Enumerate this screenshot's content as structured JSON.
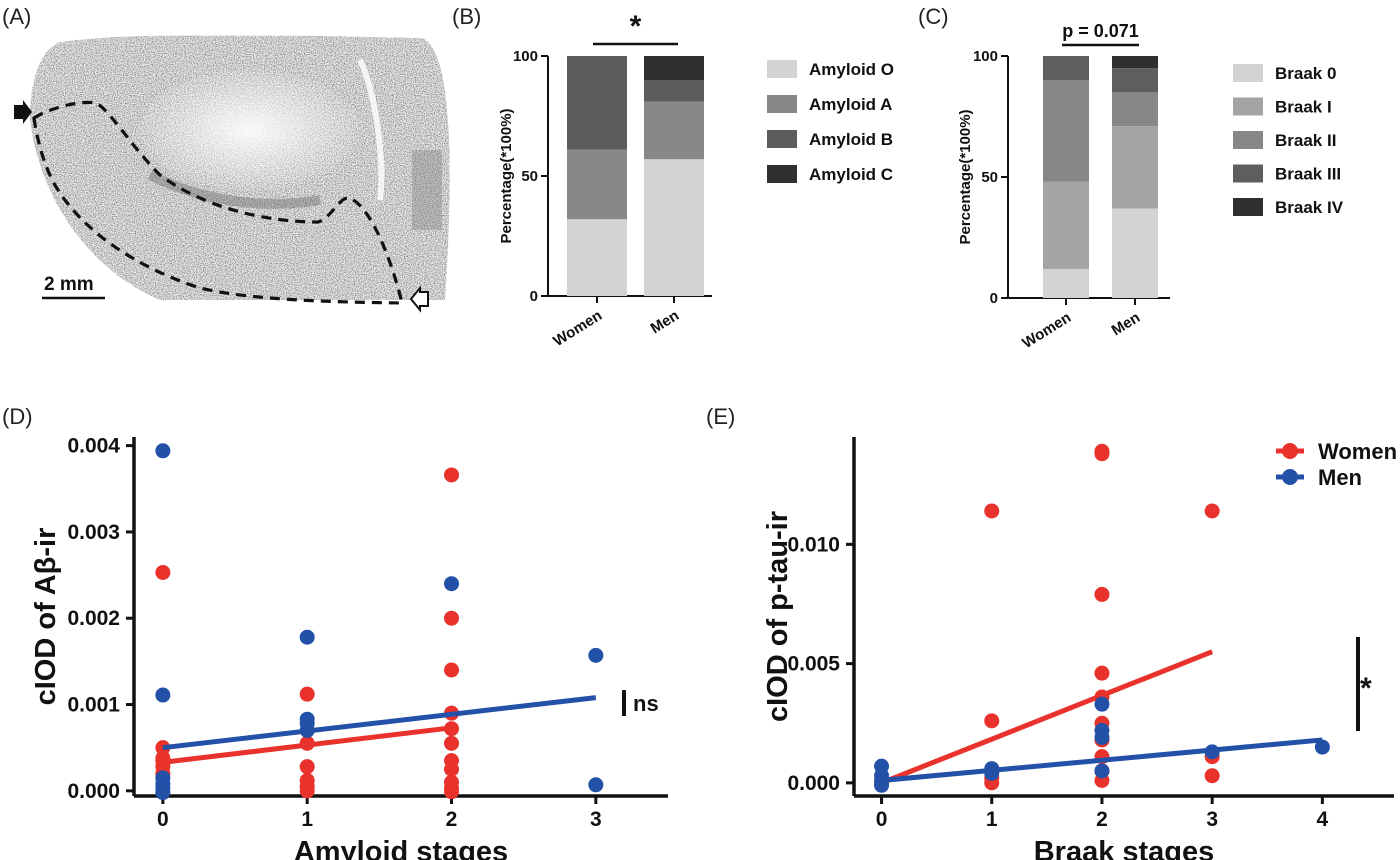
{
  "panel_labels": {
    "a": "(A)",
    "b": "(B)",
    "c": "(C)",
    "d": "(D)",
    "e": "(E)"
  },
  "panel_a": {
    "scale_bar_label": "2 mm"
  },
  "chart_data": [
    {
      "id": "B",
      "type": "bar",
      "stacked": true,
      "categories": [
        "Women",
        "Men"
      ],
      "ylabel": "Percentage(*100%)",
      "ylim": [
        0,
        100
      ],
      "yticks": [
        0,
        50,
        100
      ],
      "series": [
        {
          "name": "Amyloid O",
          "color": "#d3d3d3",
          "values": [
            32,
            57
          ]
        },
        {
          "name": "Amyloid A",
          "color": "#888888",
          "values": [
            29,
            24
          ]
        },
        {
          "name": "Amyloid B",
          "color": "#5c5c5c",
          "values": [
            39,
            9
          ]
        },
        {
          "name": "Amyloid C",
          "color": "#303030",
          "values": [
            0,
            10
          ]
        }
      ],
      "significance": "*"
    },
    {
      "id": "C",
      "type": "bar",
      "stacked": true,
      "categories": [
        "Women",
        "Men"
      ],
      "ylabel": "Percentage(*100%)",
      "ylim": [
        0,
        100
      ],
      "yticks": [
        0,
        50,
        100
      ],
      "series": [
        {
          "name": "Braak 0",
          "color": "#d3d3d3",
          "values": [
            12,
            37
          ]
        },
        {
          "name": "Braak I",
          "color": "#a4a4a4",
          "values": [
            36,
            34
          ]
        },
        {
          "name": "Braak II",
          "color": "#878787",
          "values": [
            42,
            14
          ]
        },
        {
          "name": "Braak III",
          "color": "#5e5e5e",
          "values": [
            10,
            10
          ]
        },
        {
          "name": "Braak IV",
          "color": "#303030",
          "values": [
            0,
            5
          ]
        }
      ],
      "significance": "p = 0.071"
    },
    {
      "id": "D",
      "type": "scatter",
      "xlabel": "Amyloid stages",
      "ylabel": "cIOD of Aβ-ir",
      "xlim": [
        -0.2,
        3.5
      ],
      "ylim": [
        -6e-05,
        0.0041
      ],
      "xticks": [
        "0",
        "1",
        "2",
        "3"
      ],
      "yticks": [
        "0.000",
        "0.001",
        "0.002",
        "0.003",
        "0.004"
      ],
      "series": [
        {
          "name": "Women",
          "color": "#e8322b",
          "points": [
            [
              0,
              0.00253
            ],
            [
              0,
              0.0005
            ],
            [
              0,
              0.00038
            ],
            [
              0,
              0.00035
            ],
            [
              0,
              0.00028
            ],
            [
              0,
              0.0002
            ],
            [
              1,
              0.00112
            ],
            [
              1,
              0.00055
            ],
            [
              1,
              0.00028
            ],
            [
              1,
              0.00012
            ],
            [
              1,
              5e-05
            ],
            [
              1,
              0.0
            ],
            [
              2,
              0.00366
            ],
            [
              2,
              0.002
            ],
            [
              2,
              0.0014
            ],
            [
              2,
              0.0009
            ],
            [
              2,
              0.00072
            ],
            [
              2,
              0.00055
            ],
            [
              2,
              0.00035
            ],
            [
              2,
              0.00025
            ],
            [
              2,
              0.0001
            ],
            [
              2,
              3e-05
            ],
            [
              2,
              -1e-05
            ]
          ],
          "fit": [
            [
              0,
              0.00033
            ],
            [
              2,
              0.00073
            ]
          ]
        },
        {
          "name": "Men",
          "color": "#2351a8",
          "points": [
            [
              0,
              0.00394
            ],
            [
              0,
              0.00111
            ],
            [
              0,
              0.00015
            ],
            [
              0,
              8e-05
            ],
            [
              0,
              3e-05
            ],
            [
              0,
              -2e-05
            ],
            [
              1,
              0.00178
            ],
            [
              1,
              0.00083
            ],
            [
              1,
              0.00078
            ],
            [
              1,
              0.0007
            ],
            [
              2,
              0.0024
            ],
            [
              3,
              0.00157
            ],
            [
              3,
              7e-05
            ]
          ],
          "fit": [
            [
              0,
              0.0005
            ],
            [
              3,
              0.00108
            ]
          ]
        }
      ],
      "annotation": "ns"
    },
    {
      "id": "E",
      "type": "scatter",
      "xlabel": "Braak stages",
      "ylabel": "cIOD of p-tau-ir",
      "xlim": [
        -0.25,
        4.65
      ],
      "ylim": [
        -0.00055,
        0.0145
      ],
      "xticks": [
        "0",
        "1",
        "2",
        "3",
        "4"
      ],
      "yticks": [
        "0.000",
        "0.005",
        "0.010"
      ],
      "legend_position": "top-right",
      "series": [
        {
          "name": "Women",
          "color": "#e8322b",
          "points": [
            [
              0,
              0.0
            ],
            [
              1,
              0.0114
            ],
            [
              1,
              0.0026
            ],
            [
              1,
              0.0005
            ],
            [
              1,
              0.0002
            ],
            [
              1,
              0.0
            ],
            [
              2,
              0.0139
            ],
            [
              2,
              0.0138
            ],
            [
              2,
              0.0079
            ],
            [
              2,
              0.0046
            ],
            [
              2,
              0.0036
            ],
            [
              2,
              0.0025
            ],
            [
              2,
              0.0018
            ],
            [
              2,
              0.0011
            ],
            [
              2,
              0.0005
            ],
            [
              2,
              0.0001
            ],
            [
              3,
              0.0114
            ],
            [
              3,
              0.0011
            ],
            [
              3,
              0.0003
            ]
          ],
          "fit": [
            [
              0,
              0.0
            ],
            [
              3,
              0.0055
            ]
          ]
        },
        {
          "name": "Men",
          "color": "#2351a8",
          "points": [
            [
              0,
              0.0007
            ],
            [
              0,
              0.0003
            ],
            [
              0,
              0.0001
            ],
            [
              0,
              -0.0001
            ],
            [
              1,
              0.0006
            ],
            [
              1,
              0.0004
            ],
            [
              2,
              0.0033
            ],
            [
              2,
              0.0022
            ],
            [
              2,
              0.0019
            ],
            [
              2,
              0.0005
            ],
            [
              3,
              0.0013
            ],
            [
              4,
              0.0015
            ]
          ],
          "fit": [
            [
              0,
              0.0001
            ],
            [
              4,
              0.0018
            ]
          ]
        }
      ],
      "annotation": "*"
    }
  ]
}
